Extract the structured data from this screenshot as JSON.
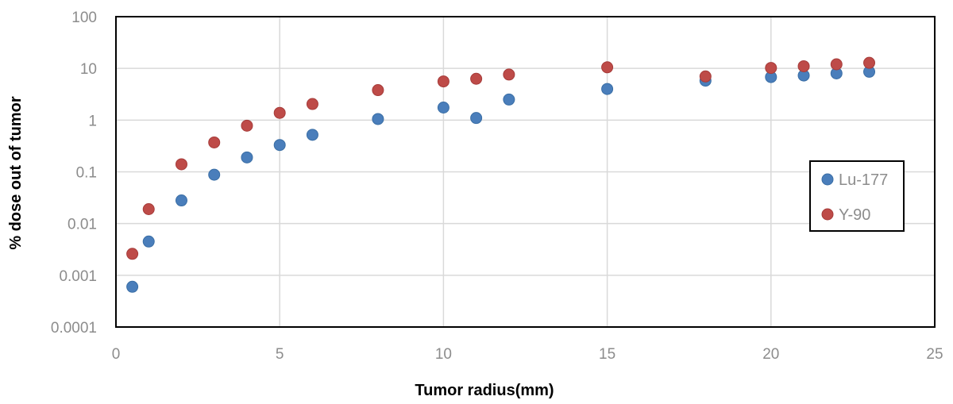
{
  "chart_data": {
    "type": "scatter",
    "title": "",
    "xlabel": "Tumor radius(mm)",
    "ylabel": "% dose out of tumor",
    "xlim": [
      0,
      25
    ],
    "ylim": [
      0.0001,
      100
    ],
    "yscale": "log",
    "grid": true,
    "legend_position": "right",
    "x_ticks": [
      "0",
      "5",
      "10",
      "15",
      "20",
      "25"
    ],
    "y_ticks": [
      "0.0001",
      "0.001",
      "0.01",
      "0.1",
      "1",
      "10",
      "100"
    ],
    "series": [
      {
        "name": "Lu-177",
        "color": "#4a7ebb",
        "x": [
          0.5,
          1,
          2,
          3,
          4,
          5,
          6,
          8,
          10,
          11,
          12,
          15,
          18,
          20,
          21,
          22,
          23
        ],
        "y": [
          0.0006,
          0.0045,
          0.028,
          0.088,
          0.19,
          0.33,
          0.52,
          1.05,
          1.75,
          1.1,
          2.5,
          4.0,
          5.8,
          6.8,
          7.3,
          8.0,
          8.6
        ]
      },
      {
        "name": "Y-90",
        "color": "#be4b48",
        "x": [
          0.5,
          1,
          2,
          3,
          4,
          5,
          6,
          8,
          10,
          11,
          12,
          15,
          18,
          20,
          21,
          22,
          23
        ],
        "y": [
          0.0026,
          0.019,
          0.14,
          0.37,
          0.78,
          1.38,
          2.05,
          3.8,
          5.6,
          6.3,
          7.6,
          10.5,
          7.0,
          10.2,
          11.0,
          12.0,
          12.8
        ]
      }
    ]
  }
}
